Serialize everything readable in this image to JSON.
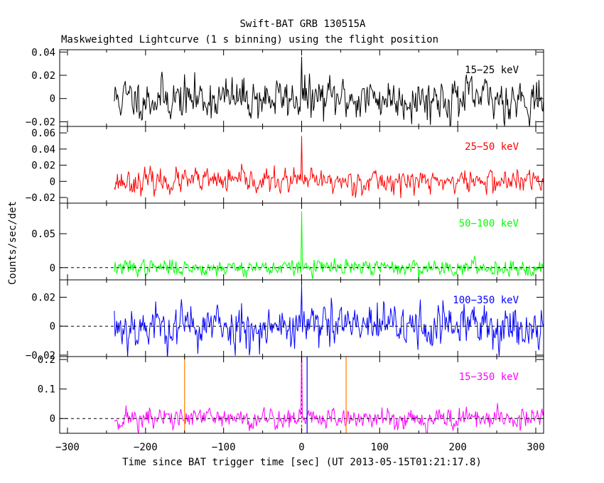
{
  "header": {
    "title": "Swift-BAT GRB 130515A",
    "subtitle": "Maskweighted Lightcurve (1 s binning) using the flight position"
  },
  "axes": {
    "xlabel": "Time since BAT trigger time [sec] (UT 2013-05-15T01:21:17.8)",
    "ylabel": "Counts/sec/det",
    "x_ticks": [
      "−300",
      "−200",
      "−100",
      "0",
      "100",
      "200",
      "300"
    ]
  },
  "chart_data": {
    "type": "line",
    "title": "Swift-BAT GRB 130515A",
    "subtitle": "Maskweighted Lightcurve (1 s binning) using the flight position",
    "xlabel": "Time since BAT trigger time [sec] (UT 2013-05-15T01:21:17.8)",
    "ylabel": "Counts/sec/det",
    "xlim": [
      -310,
      310
    ],
    "x_ticks": [
      -300,
      -200,
      -100,
      0,
      100,
      200,
      300
    ],
    "data_start": -240,
    "trigger_time": 0,
    "panels": [
      {
        "name": "15-25 keV",
        "label": "15−25 keV",
        "color": "#000000",
        "ylim": [
          -0.024,
          0.042
        ],
        "y_ticks": [
          -0.02,
          0,
          0.02,
          0.04
        ],
        "y_tick_labels": [
          "−0.02",
          "0",
          "0.02",
          "0.04"
        ],
        "noise_sigma": 0.0085,
        "peak_value": 0.036,
        "seed": 11
      },
      {
        "name": "25-50 keV",
        "label": "25−50 keV",
        "color": "#ff0000",
        "ylim": [
          -0.027,
          0.068
        ],
        "y_ticks": [
          -0.02,
          0,
          0.02,
          0.04,
          0.06
        ],
        "y_tick_labels": [
          "−0.02",
          "0",
          "0.02",
          "0.04",
          "0.06"
        ],
        "noise_sigma": 0.007,
        "peak_value": 0.056,
        "seed": 23
      },
      {
        "name": "50-100 keV",
        "label": "50−100 keV",
        "color": "#00ff00",
        "ylim": [
          -0.018,
          0.095
        ],
        "y_ticks": [
          0,
          0.05
        ],
        "y_tick_labels": [
          "0",
          "0.05"
        ],
        "noise_sigma": 0.0055,
        "peak_value": 0.083,
        "seed": 37
      },
      {
        "name": "100-350 keV",
        "label": "100−350 keV",
        "color": "#0000ff",
        "ylim": [
          -0.021,
          0.032
        ],
        "y_ticks": [
          -0.02,
          0,
          0.02
        ],
        "y_tick_labels": [
          "−0.02",
          "0",
          "0.02"
        ],
        "noise_sigma": 0.0075,
        "peak_value": 0.028,
        "seed": 53
      },
      {
        "name": "15-350 keV",
        "label": "15−350 keV",
        "color": "#ff00ff",
        "ylim": [
          -0.05,
          0.21
        ],
        "y_ticks": [
          0,
          0.1,
          0.2
        ],
        "y_tick_labels": [
          "0",
          "0.1",
          "0.2"
        ],
        "noise_sigma": 0.018,
        "peak_value": 0.24,
        "seed": 71
      }
    ],
    "markers": [
      {
        "name": "orange-line-left",
        "x": -150,
        "color": "#ff8000"
      },
      {
        "name": "orange-line-right",
        "x": 57,
        "color": "#ff8000"
      },
      {
        "name": "blue-line",
        "x": 7,
        "color": "#0000ff"
      },
      {
        "name": "green-dashed-line",
        "x": 0,
        "color": "#00cc00",
        "dashed": true
      },
      {
        "name": "red-dashed-line",
        "x": 0,
        "color": "#ff0000",
        "dashed": true
      }
    ]
  }
}
